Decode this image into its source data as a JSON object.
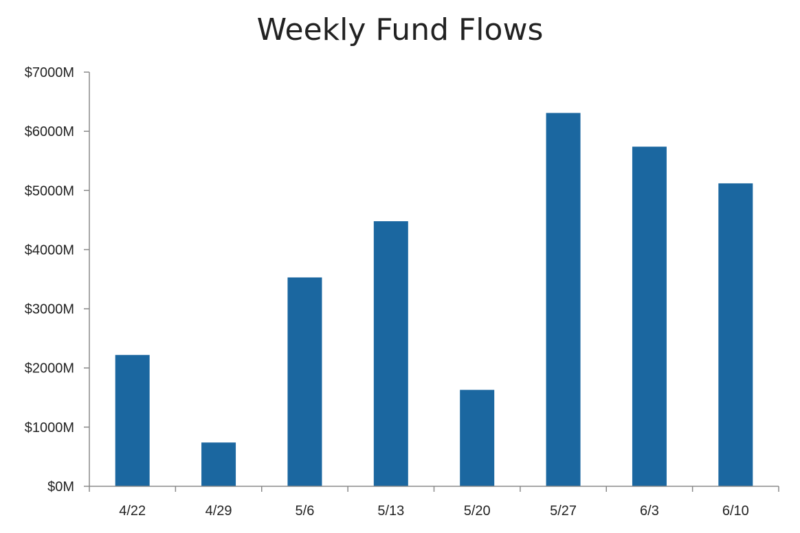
{
  "chart_data": {
    "type": "bar",
    "title": "Weekly Fund Flows",
    "xlabel": "",
    "ylabel": "",
    "categories": [
      "4/22",
      "4/29",
      "5/6",
      "5/13",
      "5/20",
      "5/27",
      "6/3",
      "6/10"
    ],
    "values": [
      2220,
      740,
      3530,
      4480,
      1630,
      6310,
      5740,
      5120
    ],
    "ylim": [
      0,
      7000
    ],
    "yticks": [
      0,
      1000,
      2000,
      3000,
      4000,
      5000,
      6000,
      7000
    ],
    "ytick_labels": [
      "$0M",
      "$1000M",
      "$2000M",
      "$3000M",
      "$4000M",
      "$5000M",
      "$6000M",
      "$7000M"
    ],
    "unit": "$M",
    "grid": false,
    "legend": "none",
    "bar_color": "#1b67a0",
    "axis_color": "#888888"
  }
}
